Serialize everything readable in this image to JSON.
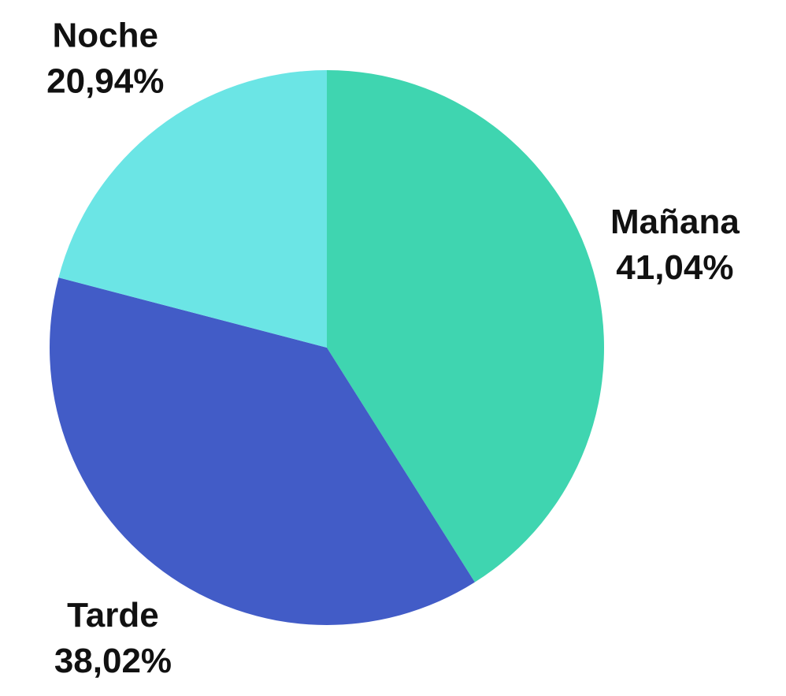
{
  "chart_data": {
    "type": "pie",
    "categories": [
      "Mañana",
      "Tarde",
      "Noche"
    ],
    "values": [
      41.04,
      38.02,
      20.94
    ],
    "value_labels": [
      "41,04%",
      "38,02%",
      "20,94%"
    ],
    "colors": [
      "#3fd5b0",
      "#425cc7",
      "#6be5e5"
    ]
  }
}
